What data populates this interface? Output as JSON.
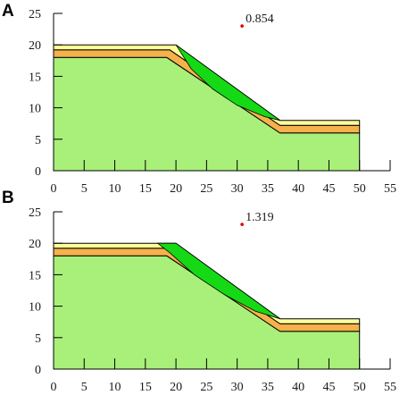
{
  "colors": {
    "ground": "#a8f07a",
    "layer_orange": "#f5b24a",
    "layer_yellow": "#ffff99",
    "slip_mass": "#16d916",
    "center": "#e00000",
    "outline": "#000000"
  },
  "geometry": {
    "top_surface": [
      [
        0,
        20
      ],
      [
        20,
        20
      ],
      [
        37,
        8
      ],
      [
        50,
        8
      ]
    ],
    "orange_top": [
      [
        0,
        19.2
      ],
      [
        19,
        19.2
      ],
      [
        37,
        7.2
      ],
      [
        50,
        7.2
      ]
    ],
    "orange_bottom": [
      [
        0,
        18
      ],
      [
        18.5,
        18
      ],
      [
        37,
        6
      ],
      [
        50,
        6
      ]
    ],
    "base_y": 0,
    "x_end": 50
  },
  "panels": [
    {
      "label": "A",
      "fos": "0.854",
      "center": [
        30.8,
        23
      ],
      "slip_surface": [
        [
          20,
          20
        ],
        [
          37,
          8
        ],
        [
          34.5,
          8.6
        ],
        [
          30,
          10.4
        ],
        [
          26,
          13
        ],
        [
          22.5,
          16.2
        ],
        [
          20,
          20
        ]
      ]
    },
    {
      "label": "B",
      "fos": "1.319",
      "center": [
        30.8,
        23
      ],
      "slip_surface": [
        [
          17,
          20
        ],
        [
          20,
          20
        ],
        [
          37,
          8
        ],
        [
          33,
          9.2
        ],
        [
          28,
          11.8
        ],
        [
          23,
          15
        ],
        [
          19,
          18.5
        ],
        [
          17,
          20
        ]
      ]
    }
  ],
  "axes": {
    "x_ticks": [
      "0",
      "5",
      "10",
      "15",
      "20",
      "25",
      "30",
      "35",
      "40",
      "45",
      "50",
      "55"
    ],
    "y_ticks": [
      "0",
      "5",
      "10",
      "15",
      "20",
      "25"
    ],
    "xlim": [
      0,
      55
    ],
    "ylim": [
      0,
      25
    ]
  }
}
